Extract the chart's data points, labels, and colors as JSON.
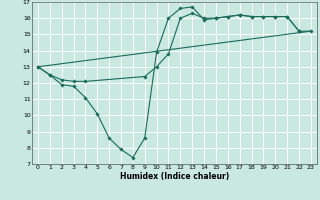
{
  "xlabel": "Humidex (Indice chaleur)",
  "bg_color": "#c8e8e0",
  "grid_color": "#ffffff",
  "line_color": "#1a6b5a",
  "xlim": [
    -0.5,
    23.5
  ],
  "ylim": [
    7,
    17
  ],
  "xticks": [
    0,
    1,
    2,
    3,
    4,
    5,
    6,
    7,
    8,
    9,
    10,
    11,
    12,
    13,
    14,
    15,
    16,
    17,
    18,
    19,
    20,
    21,
    22,
    23
  ],
  "yticks": [
    7,
    8,
    9,
    10,
    11,
    12,
    13,
    14,
    15,
    16,
    17
  ],
  "line1_x": [
    0,
    1,
    2,
    3,
    4,
    5,
    6,
    7,
    8,
    9,
    10,
    11,
    12,
    13,
    14,
    15,
    16,
    17,
    18,
    19,
    20,
    21,
    22
  ],
  "line1_y": [
    13.0,
    12.5,
    11.9,
    11.8,
    11.1,
    10.1,
    8.6,
    7.9,
    7.4,
    8.6,
    13.9,
    16.0,
    16.6,
    16.7,
    15.9,
    16.0,
    16.1,
    16.2,
    16.1,
    16.1,
    16.1,
    16.1,
    15.2
  ],
  "line2_x": [
    0,
    1,
    2,
    3,
    4,
    9,
    10,
    11,
    12,
    13,
    14,
    15,
    16,
    17,
    18,
    19,
    20,
    21,
    22,
    23
  ],
  "line2_y": [
    13.0,
    12.5,
    12.2,
    12.1,
    12.1,
    12.4,
    13.0,
    13.8,
    16.0,
    16.3,
    16.0,
    16.0,
    16.1,
    16.2,
    16.1,
    16.1,
    16.1,
    16.1,
    15.2,
    15.2
  ],
  "line3_x": [
    0,
    23
  ],
  "line3_y": [
    13.0,
    15.2
  ]
}
